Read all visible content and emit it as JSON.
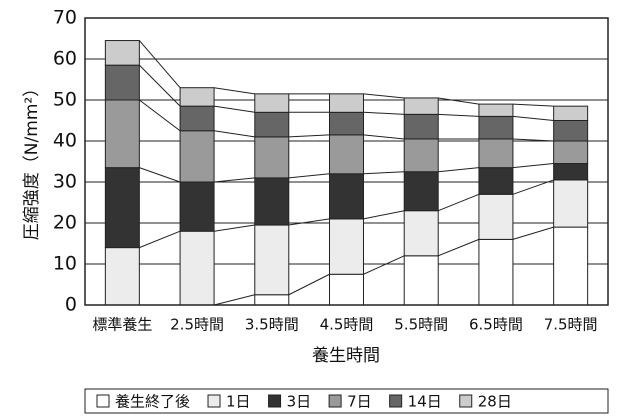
{
  "chart_data": {
    "type": "stacked_bar",
    "categories": [
      "標準養生",
      "2.5時間",
      "3.5時間",
      "4.5時間",
      "5.5時間",
      "6.5時間",
      "7.5時間"
    ],
    "series": [
      {
        "name": "養生終了後",
        "color": "#ffffff",
        "values": [
          0,
          0,
          2.5,
          7.5,
          12,
          16,
          19
        ]
      },
      {
        "name": "1日",
        "color": "#ececec",
        "values": [
          14,
          18,
          17,
          13.5,
          11,
          11,
          11.5
        ]
      },
      {
        "name": "3日",
        "color": "#333333",
        "values": [
          19.5,
          12,
          11.5,
          11,
          9.5,
          6.5,
          4
        ]
      },
      {
        "name": "7日",
        "color": "#9a9a9a",
        "values": [
          16.5,
          12.5,
          10,
          9.5,
          8,
          7,
          5.5
        ]
      },
      {
        "name": "14日",
        "color": "#666666",
        "values": [
          8.5,
          6,
          6,
          5.5,
          6,
          5.5,
          5
        ]
      },
      {
        "name": "28日",
        "color": "#cccccc",
        "values": [
          6,
          4.5,
          4.5,
          4.5,
          4,
          3,
          3.5
        ]
      }
    ],
    "ylim": [
      0,
      70
    ],
    "yticks": [
      0,
      10,
      20,
      30,
      40,
      50,
      60,
      70
    ],
    "grid": true,
    "y_label": "圧縮強度（N/mm²）",
    "x_label": "養生時間",
    "legend": "bottom"
  }
}
